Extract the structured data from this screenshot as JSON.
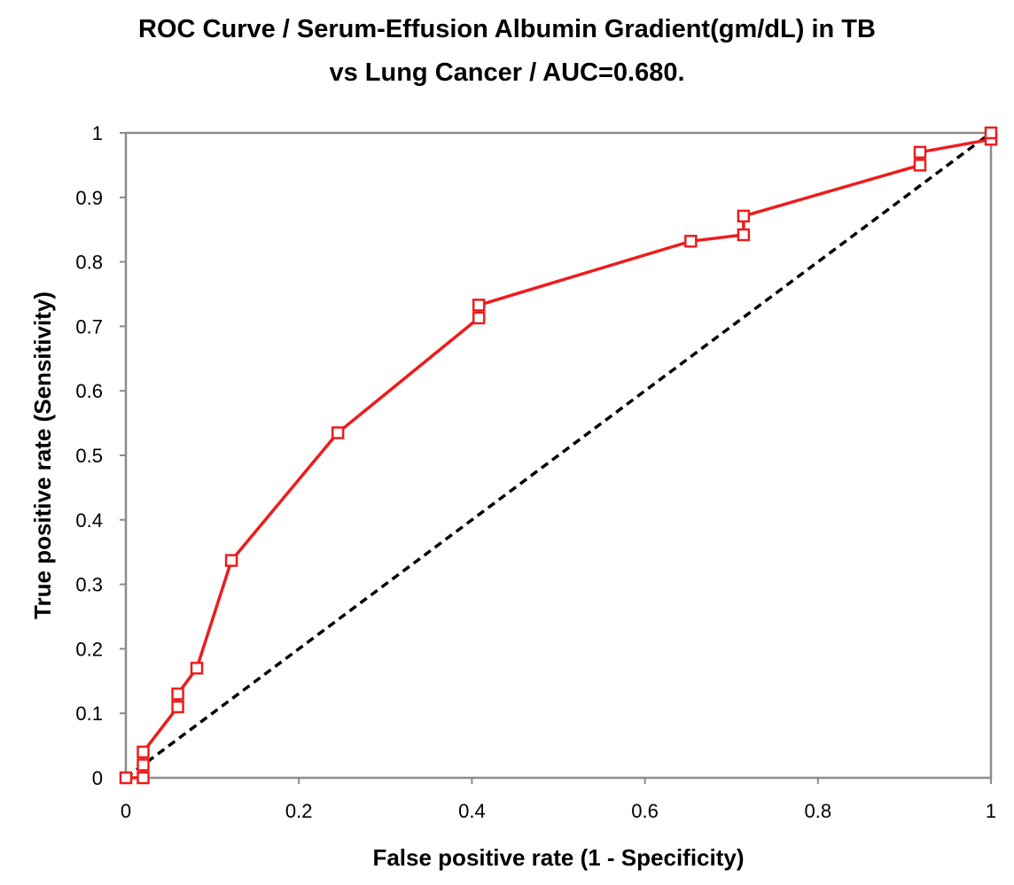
{
  "chart_data": {
    "type": "line",
    "title_lines": [
      "ROC Curve / Serum-Effusion Albumin Gradient(gm/dL) in TB",
      "vs Lung Cancer / AUC=0.680."
    ],
    "xlabel": "False positive rate (1 - Specificity)",
    "ylabel": "True positive rate (Sensitivity)",
    "xlim": [
      0,
      1
    ],
    "ylim": [
      0,
      1
    ],
    "xticks": [
      0,
      0.2,
      0.4,
      0.6,
      0.8,
      1
    ],
    "xtick_labels": [
      "0",
      "0.2",
      "0.4",
      "0.6",
      "0.8",
      "1"
    ],
    "yticks": [
      0,
      0.1,
      0.2,
      0.3,
      0.4,
      0.5,
      0.6,
      0.7,
      0.8,
      0.9,
      1
    ],
    "ytick_labels": [
      "0",
      "0.1",
      "0.2",
      "0.3",
      "0.4",
      "0.5",
      "0.6",
      "0.7",
      "0.8",
      "0.9",
      "1"
    ],
    "grid": false,
    "series": [
      {
        "name": "ROC",
        "color": "#ee1c1c",
        "marker": "square-open",
        "line_style": "solid",
        "x": [
          0,
          0.02,
          0.02,
          0.02,
          0.06,
          0.06,
          0.082,
          0.122,
          0.245,
          0.408,
          0.408,
          0.653,
          0.714,
          0.714,
          0.918,
          0.918,
          1,
          1
        ],
        "y": [
          0,
          0,
          0.02,
          0.04,
          0.11,
          0.13,
          0.17,
          0.337,
          0.535,
          0.713,
          0.733,
          0.832,
          0.842,
          0.871,
          0.95,
          0.97,
          0.99,
          1
        ]
      },
      {
        "name": "Reference",
        "color": "#000000",
        "marker": "none",
        "line_style": "dashed",
        "x": [
          0,
          1
        ],
        "y": [
          0,
          1
        ]
      }
    ]
  }
}
